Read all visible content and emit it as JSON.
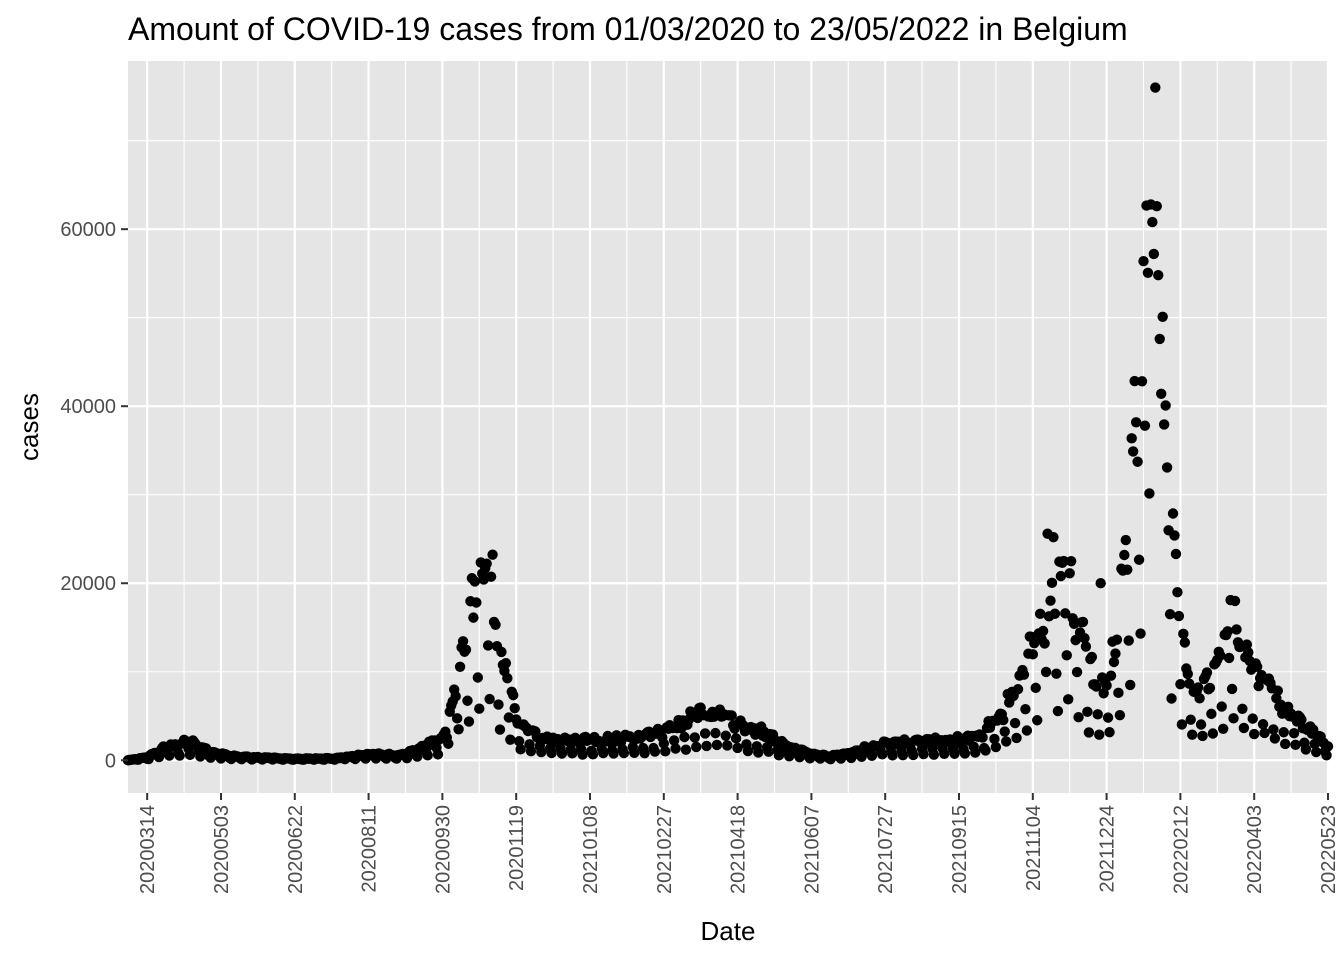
{
  "chart_data": {
    "type": "scatter",
    "title": "Amount of COVID-19 cases from 01/03/2020 to 23/05/2022 in Belgium",
    "xlabel": "Date",
    "ylabel": "cases",
    "x_tick_labels": [
      "20200314",
      "20200503",
      "20200622",
      "20200811",
      "20200930",
      "20201119",
      "20210108",
      "20210227",
      "20210418",
      "20210607",
      "20210727",
      "20210915",
      "20211104",
      "20211224",
      "20220212",
      "20220403",
      "20220523"
    ],
    "y_ticks": [
      0,
      20000,
      40000,
      60000
    ],
    "y_tick_labels": [
      "0",
      "20000",
      "40000",
      "60000"
    ],
    "ylim": [
      -3700,
      79000
    ],
    "xlim": [
      "20200301",
      "20220523"
    ],
    "grid": true,
    "panel_background": "#e5e5e5",
    "grid_color": "#ffffff",
    "point_color": "#000000",
    "peaks_note_free": true,
    "series_profile": [
      [
        "20200301",
        0
      ],
      [
        "20200314",
        300
      ],
      [
        "20200325",
        1200
      ],
      [
        "20200405",
        1600
      ],
      [
        "20200412",
        2000
      ],
      [
        "20200425",
        900
      ],
      [
        "20200510",
        400
      ],
      [
        "20200622",
        150
      ],
      [
        "20200720",
        200
      ],
      [
        "20200811",
        600
      ],
      [
        "20200901",
        500
      ],
      [
        "20200920",
        1500
      ],
      [
        "20200930",
        2500
      ],
      [
        "20201010",
        8000
      ],
      [
        "20201020",
        15000
      ],
      [
        "20201027",
        19500
      ],
      [
        "20201030",
        22000
      ],
      [
        "20201106",
        13000
      ],
      [
        "20201119",
        4000
      ],
      [
        "20201201",
        2500
      ],
      [
        "20201215",
        2000
      ],
      [
        "20210108",
        2000
      ],
      [
        "20210201",
        2200
      ],
      [
        "20210227",
        2800
      ],
      [
        "20210315",
        4000
      ],
      [
        "20210325",
        5200
      ],
      [
        "20210418",
        3800
      ],
      [
        "20210505",
        2800
      ],
      [
        "20210520",
        1500
      ],
      [
        "20210607",
        600
      ],
      [
        "20210620",
        400
      ],
      [
        "20210705",
        800
      ],
      [
        "20210727",
        1800
      ],
      [
        "20210915",
        2000
      ],
      [
        "20211001",
        2500
      ],
      [
        "20211015",
        5000
      ],
      [
        "20211025",
        8000
      ],
      [
        "20211104",
        11000
      ],
      [
        "20211115",
        16000
      ],
      [
        "20211125",
        19000
      ],
      [
        "20211205",
        14000
      ],
      [
        "20211215",
        8500
      ],
      [
        "20211224",
        7000
      ],
      [
        "20220101",
        13000
      ],
      [
        "20220108",
        25000
      ],
      [
        "20220115",
        38000
      ],
      [
        "20220120",
        52000
      ],
      [
        "20220124",
        58000
      ],
      [
        "20220130",
        42000
      ],
      [
        "20220205",
        25000
      ],
      [
        "20220212",
        13000
      ],
      [
        "20220222",
        7000
      ],
      [
        "20220301",
        7500
      ],
      [
        "20220310",
        10000
      ],
      [
        "20220320",
        12000
      ],
      [
        "20220403",
        9000
      ],
      [
        "20220420",
        6000
      ],
      [
        "20220505",
        4000
      ],
      [
        "20220523",
        1500
      ]
    ],
    "highlighted_points": [
      [
        "20211220",
        20000
      ],
      [
        "20220126",
        76000
      ],
      [
        "20220123",
        62800
      ],
      [
        "20220127",
        62600
      ],
      [
        "20220124",
        60800
      ],
      [
        "20220125",
        57200
      ],
      [
        "20220128",
        54800
      ],
      [
        "20220131",
        50100
      ],
      [
        "20220129",
        47600
      ],
      [
        "20220130",
        41400
      ],
      [
        "20220119",
        37800
      ],
      [
        "20201030",
        22200
      ],
      [
        "20211114",
        25600
      ],
      [
        "20211118",
        25200
      ],
      [
        "20220318",
        18100
      ],
      [
        "20220321",
        18000
      ]
    ]
  }
}
